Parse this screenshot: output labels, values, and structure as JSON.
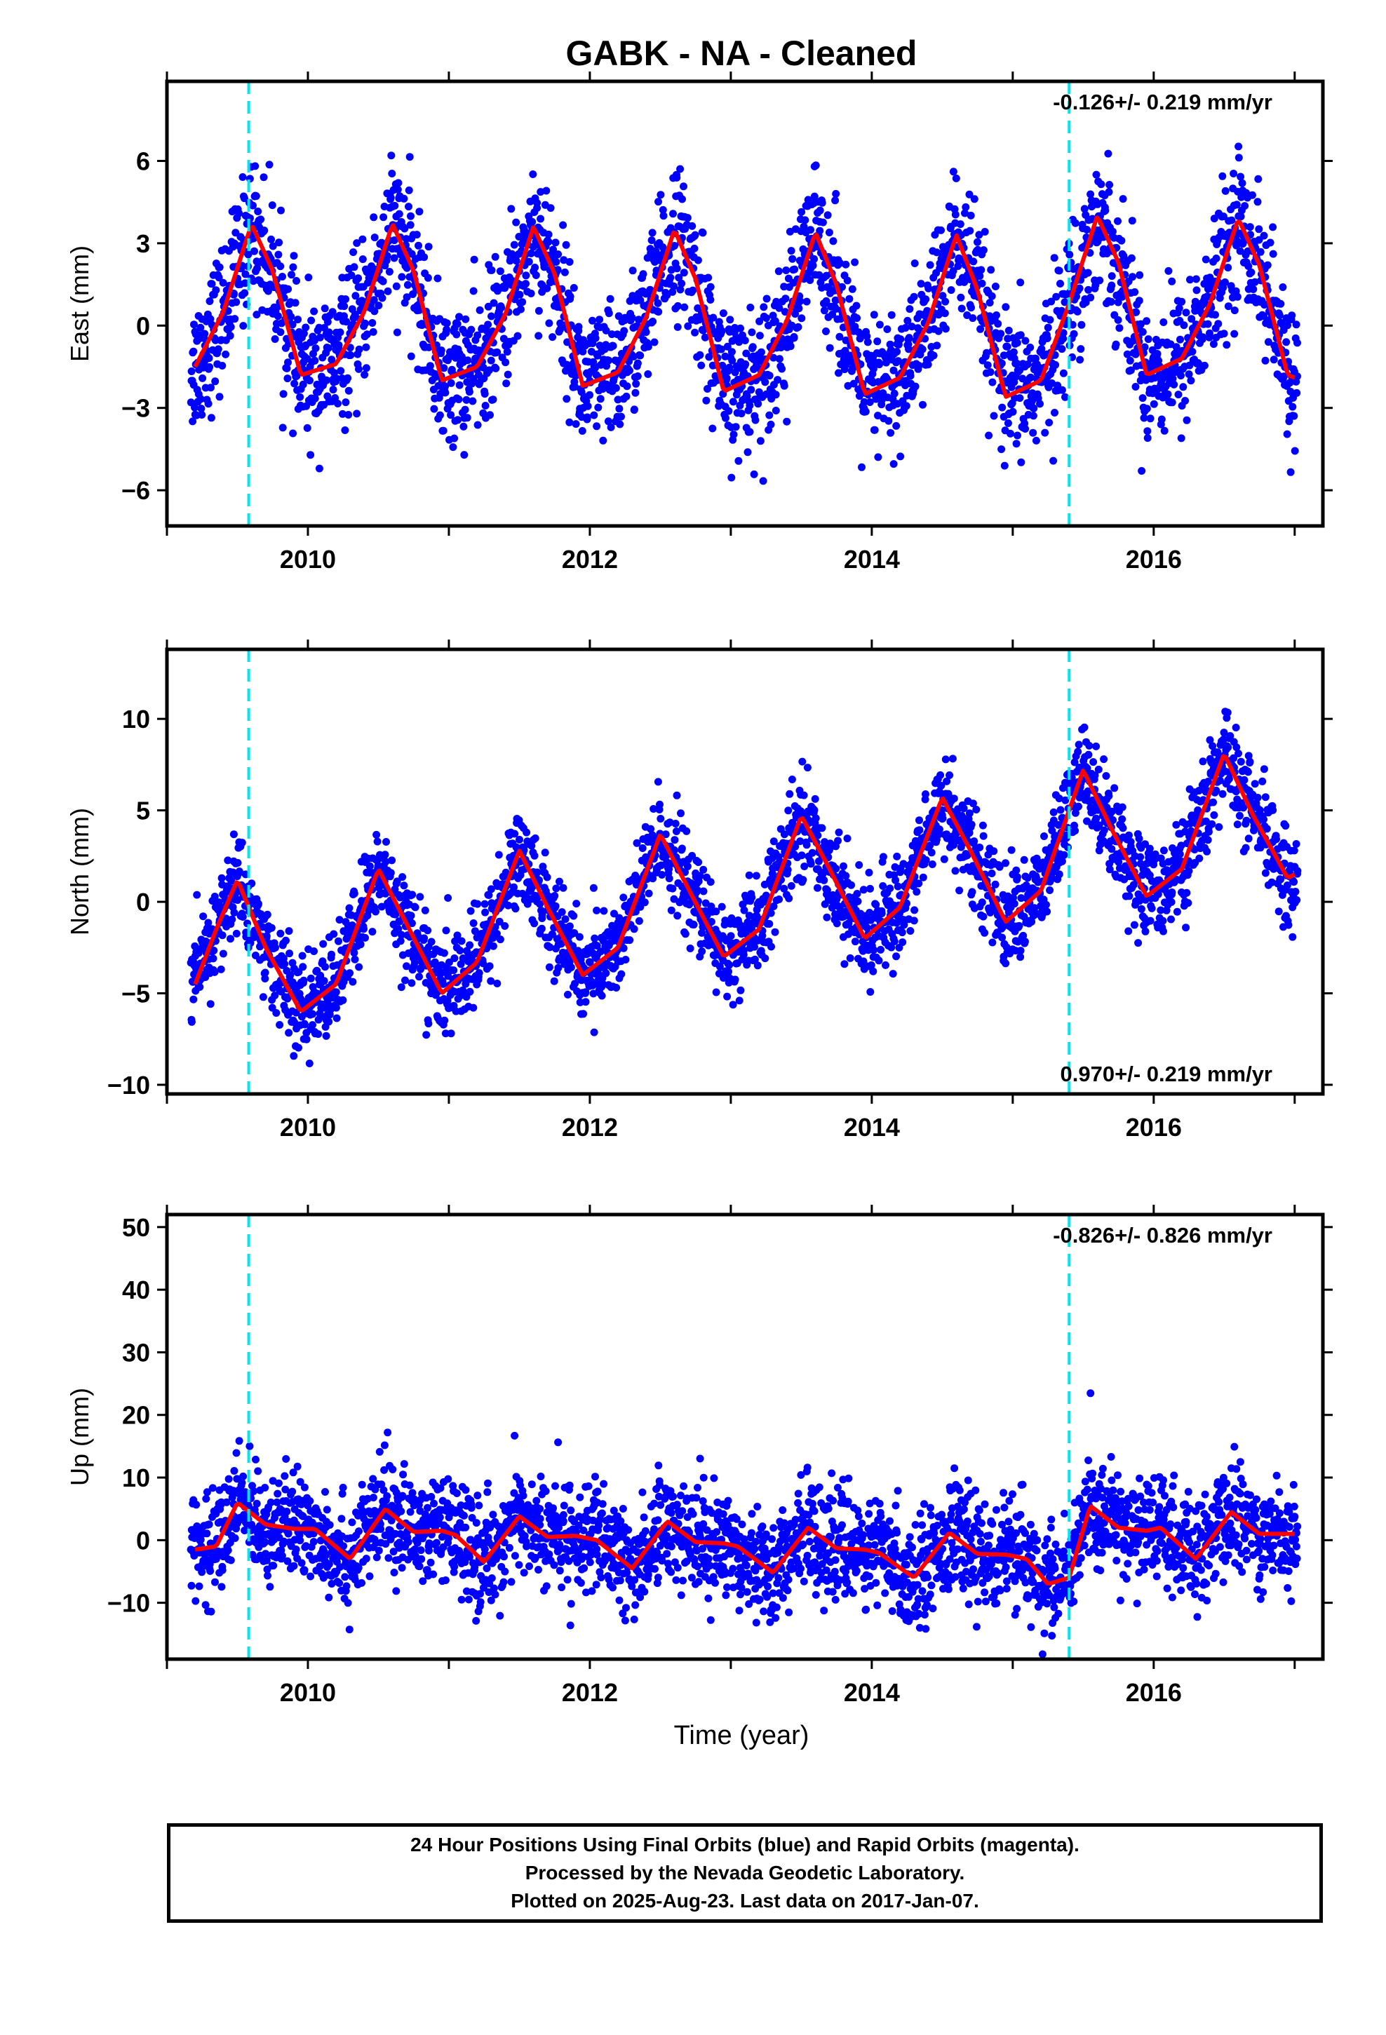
{
  "title": "GABK  - NA - Cleaned",
  "xlabel": "Time (year)",
  "colors": {
    "final_orbits": "#0000ff",
    "model": "#ff0000",
    "offset": "#00e5ee"
  },
  "chart_data": [
    {
      "type": "scatter",
      "panel": "east",
      "ylabel": "East (mm)",
      "rate": "-0.126+/- 0.219 mm/yr",
      "xlim": [
        2009.0,
        2017.2
      ],
      "ylim": [
        -7.3,
        8.9
      ],
      "yticks": [
        -6,
        -3,
        0,
        3,
        6
      ],
      "xticks": [
        2010,
        2012,
        2014,
        2016
      ],
      "offsets": [
        2009.58,
        2015.4
      ],
      "points_count": 2800,
      "model_trend_mm_per_yr": -0.126,
      "model": {
        "x": [
          2009.2,
          2009.4,
          2009.6,
          2009.75,
          2009.95,
          2010.2,
          2010.4,
          2010.6,
          2010.75,
          2010.95,
          2011.2,
          2011.4,
          2011.6,
          2011.75,
          2011.95,
          2012.2,
          2012.4,
          2012.6,
          2012.75,
          2012.95,
          2013.2,
          2013.4,
          2013.6,
          2013.75,
          2013.95,
          2014.2,
          2014.4,
          2014.6,
          2014.75,
          2014.95,
          2015.2,
          2015.4,
          2015.6,
          2015.75,
          2015.95,
          2016.2,
          2016.4,
          2016.6,
          2016.75,
          2016.95,
          2017.0
        ],
        "y": [
          -1.5,
          0.5,
          3.7,
          2.0,
          -1.8,
          -1.4,
          0.5,
          3.7,
          2.0,
          -2.0,
          -1.5,
          0.4,
          3.6,
          1.9,
          -2.2,
          -1.7,
          0.3,
          3.5,
          1.7,
          -2.4,
          -1.8,
          0.2,
          3.4,
          1.5,
          -2.5,
          -1.9,
          0.1,
          3.3,
          1.3,
          -2.6,
          -2.0,
          0.8,
          4.0,
          2.3,
          -1.8,
          -1.2,
          0.8,
          3.9,
          2.2,
          -1.8,
          -1.9
        ]
      }
    },
    {
      "type": "scatter",
      "panel": "north",
      "ylabel": "North (mm)",
      "rate": "0.970+/- 0.219 mm/yr",
      "xlim": [
        2009.0,
        2017.2
      ],
      "ylim": [
        -10.5,
        13.8
      ],
      "yticks": [
        -10,
        -5,
        0,
        5,
        10
      ],
      "xticks": [
        2010,
        2012,
        2014,
        2016
      ],
      "offsets": [
        2009.58,
        2015.4
      ],
      "points_count": 2800,
      "model_trend_mm_per_yr": 0.97,
      "model": {
        "x": [
          2009.2,
          2009.35,
          2009.5,
          2009.7,
          2009.95,
          2010.2,
          2010.5,
          2010.7,
          2010.95,
          2011.2,
          2011.5,
          2011.7,
          2011.95,
          2012.2,
          2012.5,
          2012.7,
          2012.95,
          2013.2,
          2013.5,
          2013.7,
          2013.95,
          2014.2,
          2014.5,
          2014.7,
          2014.95,
          2015.2,
          2015.5,
          2015.7,
          2015.95,
          2016.2,
          2016.5,
          2016.7,
          2016.95,
          2017.0
        ],
        "y": [
          -4.5,
          -1.5,
          1.2,
          -2.5,
          -6.0,
          -4.5,
          1.8,
          -1.2,
          -5.0,
          -3.3,
          2.8,
          -0.3,
          -4.0,
          -2.5,
          3.7,
          0.7,
          -3.0,
          -1.5,
          4.7,
          1.8,
          -2.0,
          -0.3,
          5.7,
          2.8,
          -1.1,
          0.6,
          7.2,
          4.0,
          0.3,
          1.8,
          8.1,
          4.8,
          1.3,
          1.5
        ]
      }
    },
    {
      "type": "scatter",
      "panel": "up",
      "ylabel": "Up (mm)",
      "rate": "-0.826+/- 0.826 mm/yr",
      "xlim": [
        2009.0,
        2017.2
      ],
      "ylim": [
        -19.0,
        52.0
      ],
      "yticks": [
        -10,
        0,
        10,
        20,
        30,
        40,
        50
      ],
      "xticks": [
        2010,
        2012,
        2014,
        2016
      ],
      "offsets": [
        2009.58,
        2015.4
      ],
      "points_count": 2800,
      "model_trend_mm_per_yr": -0.826,
      "model": {
        "x": [
          2009.2,
          2009.35,
          2009.5,
          2009.7,
          2009.9,
          2010.05,
          2010.3,
          2010.55,
          2010.75,
          2010.95,
          2011.05,
          2011.25,
          2011.5,
          2011.7,
          2011.9,
          2012.05,
          2012.3,
          2012.55,
          2012.75,
          2012.95,
          2013.05,
          2013.3,
          2013.55,
          2013.75,
          2013.95,
          2014.05,
          2014.3,
          2014.55,
          2014.75,
          2014.95,
          2015.1,
          2015.25,
          2015.4,
          2015.55,
          2015.75,
          2015.95,
          2016.05,
          2016.3,
          2016.55,
          2016.75,
          2016.95,
          2017.0
        ],
        "y": [
          -1.5,
          -1.0,
          6.0,
          2.5,
          1.8,
          1.8,
          -3.0,
          5.0,
          1.3,
          1.5,
          0.8,
          -3.5,
          3.8,
          0.5,
          0.7,
          0.0,
          -4.5,
          3.0,
          -0.3,
          -0.5,
          -1.0,
          -5.2,
          2.0,
          -1.3,
          -1.5,
          -2.0,
          -6.0,
          1.2,
          -2.2,
          -2.3,
          -3.0,
          -7.0,
          -6.0,
          5.5,
          2.0,
          1.5,
          2.0,
          -3.0,
          4.5,
          1.0,
          1.0,
          1.0
        ]
      }
    }
  ],
  "footer": {
    "line1": "24 Hour Positions Using Final Orbits (blue) and Rapid Orbits (magenta).",
    "line2": "Processed by the Nevada Geodetic Laboratory.",
    "line3": "Plotted on 2025-Aug-23. Last data on 2017-Jan-07."
  }
}
